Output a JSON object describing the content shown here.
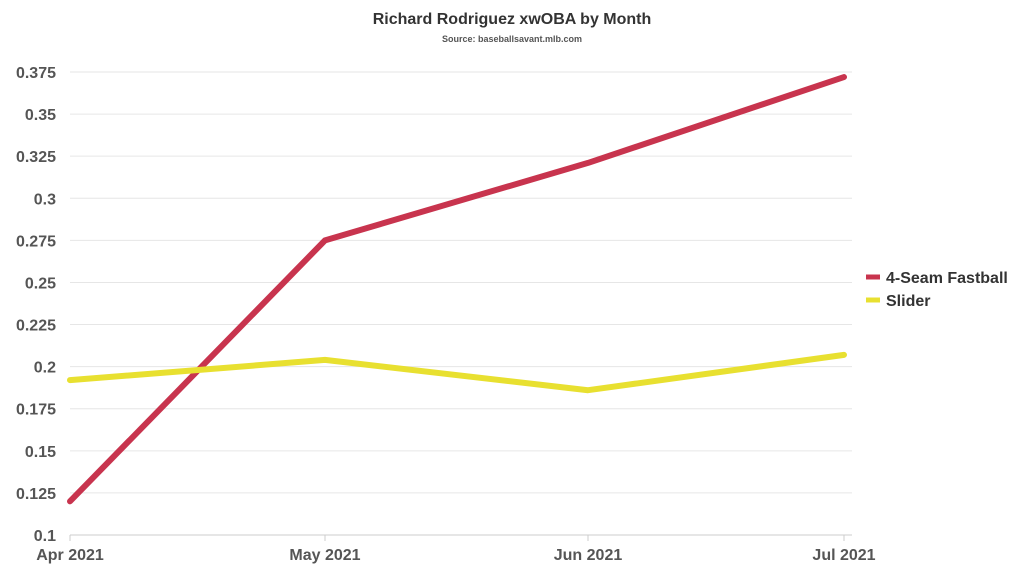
{
  "chart_data": {
    "type": "line",
    "title": "Richard Rodriguez xwOBA by Month",
    "subtitle": "Source: baseballsavant.mlb.com",
    "xlabel": "",
    "ylabel": "",
    "categories": [
      "Apr 2021",
      "May 2021",
      "Jun 2021",
      "Jul 2021"
    ],
    "y_ticks": [
      "0.1",
      "0.125",
      "0.15",
      "0.175",
      "0.2",
      "0.225",
      "0.25",
      "0.275",
      "0.3",
      "0.325",
      "0.35",
      "0.375"
    ],
    "ylim": [
      0.1,
      0.375
    ],
    "grid": true,
    "legend_position": "right",
    "series": [
      {
        "name": "4-Seam Fastball",
        "color": "#c8344e",
        "values": [
          0.12,
          0.275,
          0.321,
          0.372
        ]
      },
      {
        "name": "Slider",
        "color": "#e8e030",
        "values": [
          0.192,
          0.204,
          0.186,
          0.207
        ]
      }
    ]
  }
}
